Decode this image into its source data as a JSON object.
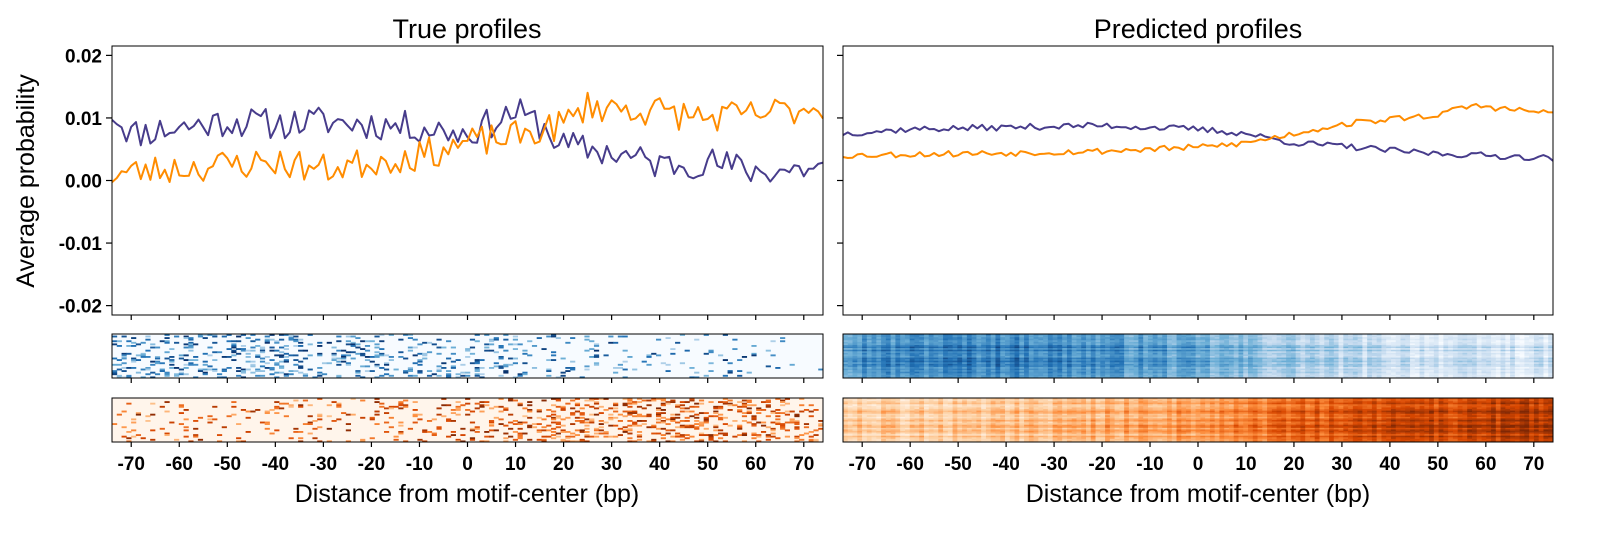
{
  "chart_data": {
    "type": "line",
    "x_range": [
      -74,
      74
    ],
    "x_ticks": [
      -70,
      -60,
      -50,
      -40,
      -30,
      -20,
      -10,
      0,
      10,
      20,
      30,
      40,
      50,
      60,
      70
    ],
    "x_tick_labels": [
      "-70",
      "-60",
      "-50",
      "-40",
      "-30",
      "-20",
      "-10",
      "0",
      "10",
      "20",
      "30",
      "40",
      "50",
      "60",
      "70"
    ],
    "xlabel": "Distance from motif-center (bp)",
    "ylabel": "Average probability",
    "ylim": [
      -0.0215,
      0.0215
    ],
    "y_ticks": [
      -0.02,
      -0.01,
      0.0,
      0.01,
      0.02
    ],
    "y_tick_labels": [
      "-0.02",
      "-0.01",
      "0.00",
      "0.01",
      "0.02"
    ],
    "series_colors": {
      "strand1": "#473c8b",
      "strand2": "#ff8c00"
    },
    "heatmap_colormaps": {
      "strand1": "Blues",
      "strand2": "Oranges"
    },
    "panels": [
      {
        "title": "True profiles",
        "series": [
          {
            "name": "strand1",
            "anchors": [
              [
                -74,
                0.011
              ],
              [
                -70,
                0.0075
              ],
              [
                -60,
                0.0085
              ],
              [
                -50,
                0.0095
              ],
              [
                -40,
                0.009
              ],
              [
                -30,
                0.0095
              ],
              [
                -20,
                0.009
              ],
              [
                -10,
                0.0085
              ],
              [
                0,
                0.0075
              ],
              [
                10,
                0.011
              ],
              [
                15,
                0.009
              ],
              [
                20,
                0.0055
              ],
              [
                30,
                0.0045
              ],
              [
                40,
                0.0025
              ],
              [
                50,
                0.003
              ],
              [
                60,
                0.0015
              ],
              [
                74,
                0.002
              ]
            ],
            "noise": 0.0025,
            "seed": 11
          },
          {
            "name": "strand2",
            "anchors": [
              [
                -74,
                0.001
              ],
              [
                -60,
                0.002
              ],
              [
                -50,
                0.0025
              ],
              [
                -40,
                0.003
              ],
              [
                -30,
                0.0018
              ],
              [
                -20,
                0.003
              ],
              [
                -10,
                0.004
              ],
              [
                0,
                0.006
              ],
              [
                10,
                0.007
              ],
              [
                20,
                0.009
              ],
              [
                25,
                0.012
              ],
              [
                40,
                0.011
              ],
              [
                50,
                0.01
              ],
              [
                60,
                0.0105
              ],
              [
                74,
                0.012
              ]
            ],
            "noise": 0.0025,
            "seed": 23
          }
        ]
      },
      {
        "title": "Predicted profiles",
        "series": [
          {
            "name": "strand1",
            "anchors": [
              [
                -74,
                0.0075
              ],
              [
                -60,
                0.0082
              ],
              [
                -40,
                0.0085
              ],
              [
                -20,
                0.0088
              ],
              [
                0,
                0.0082
              ],
              [
                10,
                0.0075
              ],
              [
                20,
                0.006
              ],
              [
                30,
                0.0055
              ],
              [
                40,
                0.0048
              ],
              [
                50,
                0.0043
              ],
              [
                60,
                0.004
              ],
              [
                74,
                0.0036
              ]
            ],
            "noise": 0.0005,
            "seed": 37
          },
          {
            "name": "strand2",
            "anchors": [
              [
                -74,
                0.004
              ],
              [
                -60,
                0.0042
              ],
              [
                -40,
                0.0044
              ],
              [
                -20,
                0.0047
              ],
              [
                -10,
                0.005
              ],
              [
                0,
                0.0053
              ],
              [
                10,
                0.006
              ],
              [
                20,
                0.0075
              ],
              [
                30,
                0.009
              ],
              [
                40,
                0.0098
              ],
              [
                50,
                0.0105
              ],
              [
                57,
                0.012
              ],
              [
                70,
                0.011
              ],
              [
                74,
                0.0108
              ]
            ],
            "noise": 0.0005,
            "seed": 53
          }
        ]
      }
    ],
    "heatmaps": [
      {
        "panel": "True profiles",
        "cmap": "Blues",
        "kind": "sparse",
        "rows": 28,
        "density_anchors": [
          [
            -74,
            0.25
          ],
          [
            0,
            0.2
          ],
          [
            20,
            0.08
          ],
          [
            74,
            0.05
          ]
        ],
        "seed": 71
      },
      {
        "panel": "True profiles",
        "cmap": "Oranges",
        "kind": "sparse",
        "rows": 28,
        "density_anchors": [
          [
            -74,
            0.08
          ],
          [
            0,
            0.12
          ],
          [
            20,
            0.3
          ],
          [
            74,
            0.22
          ]
        ],
        "seed": 83
      },
      {
        "panel": "Predicted profiles",
        "cmap": "Blues",
        "kind": "dense",
        "rows": 28,
        "intensity_anchors": [
          [
            -74,
            0.65
          ],
          [
            -40,
            0.72
          ],
          [
            -10,
            0.6
          ],
          [
            10,
            0.45
          ],
          [
            30,
            0.3
          ],
          [
            50,
            0.22
          ],
          [
            74,
            0.18
          ]
        ],
        "seed": 97
      },
      {
        "panel": "Predicted profiles",
        "cmap": "Oranges",
        "kind": "dense",
        "rows": 28,
        "intensity_anchors": [
          [
            -74,
            0.22
          ],
          [
            -30,
            0.32
          ],
          [
            0,
            0.45
          ],
          [
            20,
            0.62
          ],
          [
            40,
            0.75
          ],
          [
            74,
            0.85
          ]
        ],
        "seed": 109
      }
    ]
  }
}
